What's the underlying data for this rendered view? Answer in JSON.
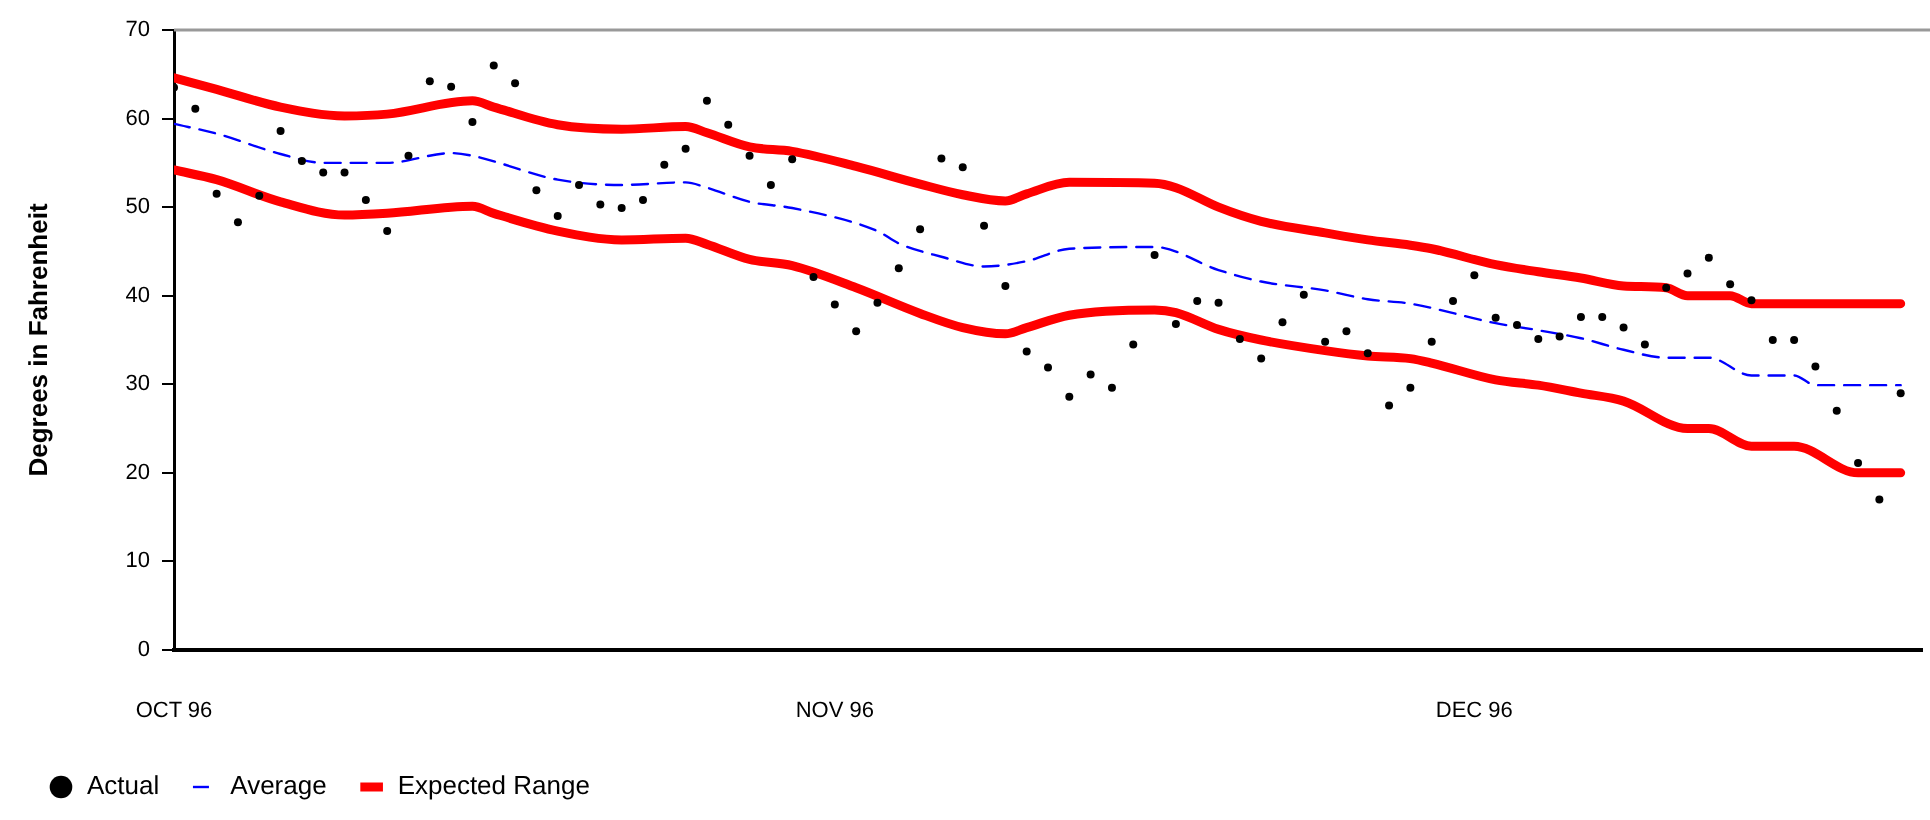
{
  "chart_data": {
    "type": "line",
    "ylabel": "Degrees in Fahrenheit",
    "xlim": [
      "1996-10-01",
      "1996-12-22"
    ],
    "xticks": [
      {
        "value": "1996-10-01",
        "label": "OCT 96"
      },
      {
        "value": "1996-11-01",
        "label": "NOV 96"
      },
      {
        "value": "1996-12-01",
        "label": "DEC 96"
      }
    ],
    "ylim": [
      0,
      70
    ],
    "yticks": [
      0,
      10,
      20,
      30,
      40,
      50,
      60,
      70
    ],
    "grid": false,
    "legend": "bottom",
    "series": [
      {
        "name": "Actual",
        "type": "scatter",
        "marker": "circle",
        "color": "#000000",
        "x": [
          "1996-10-01",
          "1996-10-02",
          "1996-10-03",
          "1996-10-04",
          "1996-10-05",
          "1996-10-06",
          "1996-10-07",
          "1996-10-08",
          "1996-10-09",
          "1996-10-10",
          "1996-10-11",
          "1996-10-12",
          "1996-10-13",
          "1996-10-14",
          "1996-10-15",
          "1996-10-16",
          "1996-10-17",
          "1996-10-18",
          "1996-10-19",
          "1996-10-20",
          "1996-10-21",
          "1996-10-22",
          "1996-10-23",
          "1996-10-24",
          "1996-10-25",
          "1996-10-26",
          "1996-10-27",
          "1996-10-28",
          "1996-10-29",
          "1996-10-30",
          "1996-10-31",
          "1996-11-01",
          "1996-11-02",
          "1996-11-03",
          "1996-11-04",
          "1996-11-05",
          "1996-11-06",
          "1996-11-07",
          "1996-11-08",
          "1996-11-09",
          "1996-11-10",
          "1996-11-11",
          "1996-11-12",
          "1996-11-13",
          "1996-11-14",
          "1996-11-15",
          "1996-11-16",
          "1996-11-17",
          "1996-11-18",
          "1996-11-19",
          "1996-11-20",
          "1996-11-21",
          "1996-11-22",
          "1996-11-23",
          "1996-11-24",
          "1996-11-25",
          "1996-11-26",
          "1996-11-27",
          "1996-11-28",
          "1996-11-29",
          "1996-11-30",
          "1996-12-01",
          "1996-12-02",
          "1996-12-03",
          "1996-12-04",
          "1996-12-05",
          "1996-12-06",
          "1996-12-07",
          "1996-12-08",
          "1996-12-09",
          "1996-12-10",
          "1996-12-11",
          "1996-12-12",
          "1996-12-13",
          "1996-12-14",
          "1996-12-15",
          "1996-12-16",
          "1996-12-17",
          "1996-12-18",
          "1996-12-19",
          "1996-12-20",
          "1996-12-21"
        ],
        "values": [
          63.5,
          61.1,
          51.5,
          48.3,
          51.3,
          58.6,
          55.2,
          53.9,
          53.9,
          50.8,
          47.3,
          55.8,
          64.2,
          63.6,
          59.6,
          66.0,
          64.0,
          51.9,
          49.0,
          52.5,
          50.3,
          49.9,
          50.8,
          54.8,
          56.6,
          62.0,
          59.3,
          55.8,
          52.5,
          55.4,
          42.1,
          39.0,
          36.0,
          39.2,
          43.1,
          47.5,
          55.5,
          54.5,
          47.9,
          41.1,
          33.7,
          31.9,
          28.6,
          31.1,
          29.6,
          34.5,
          44.6,
          36.8,
          39.4,
          39.2,
          35.1,
          32.9,
          37.0,
          40.1,
          34.8,
          36.0,
          33.5,
          27.6,
          29.6,
          34.8,
          39.4,
          42.3,
          37.5,
          36.7,
          35.1,
          35.4,
          37.6,
          37.6,
          36.4,
          34.5,
          40.9,
          42.5,
          44.3,
          41.3,
          39.5,
          35.0,
          35.0,
          32.0,
          27.0,
          21.1,
          17.0,
          29.0
        ]
      },
      {
        "name": "Average",
        "type": "line",
        "line_style": "dashed",
        "marker": "none",
        "color": "#0000ff",
        "x": [
          "1996-10-01",
          "1996-10-03",
          "1996-10-06",
          "1996-10-08",
          "1996-10-11",
          "1996-10-14",
          "1996-10-15",
          "1996-10-19",
          "1996-10-22",
          "1996-10-25",
          "1996-10-26",
          "1996-10-28",
          "1996-10-30",
          "1996-11-03",
          "1996-11-04",
          "1996-11-06",
          "1996-11-08",
          "1996-11-10",
          "1996-11-12",
          "1996-11-16",
          "1996-11-19",
          "1996-11-21",
          "1996-11-24",
          "1996-11-26",
          "1996-11-28",
          "1996-12-02",
          "1996-12-04",
          "1996-12-06",
          "1996-12-08",
          "1996-12-10",
          "1996-12-12",
          "1996-12-14",
          "1996-12-16",
          "1996-12-17",
          "1996-12-21"
        ],
        "values": [
          59.4,
          58.3,
          56.0,
          55.0,
          55.0,
          56.1,
          55.8,
          53.1,
          52.5,
          52.8,
          52.2,
          50.6,
          49.9,
          47.3,
          45.9,
          44.4,
          43.3,
          43.9,
          45.3,
          45.5,
          42.9,
          41.6,
          40.6,
          39.6,
          39.1,
          36.9,
          36.1,
          35.2,
          33.9,
          33.0,
          33.0,
          31.0,
          31.0,
          29.9,
          29.9
        ]
      },
      {
        "name": "Expected Range",
        "type": "line",
        "line_style": "solid",
        "marker": "none",
        "color": "#ff0000",
        "x": [
          "1996-10-01",
          "1996-10-03",
          "1996-10-06",
          "1996-10-09",
          "1996-10-11",
          "1996-10-15",
          "1996-10-16",
          "1996-10-19",
          "1996-10-22",
          "1996-10-25",
          "1996-10-26",
          "1996-10-28",
          "1996-10-30",
          "1996-11-02",
          "1996-11-05",
          "1996-11-07",
          "1996-11-09",
          "1996-11-10",
          "1996-11-12",
          "1996-11-16",
          "1996-11-17",
          "1996-11-19",
          "1996-11-21",
          "1996-11-24",
          "1996-11-26",
          "1996-11-28",
          "1996-11-29",
          "1996-12-02",
          "1996-12-04",
          "1996-12-06",
          "1996-12-08",
          "1996-12-10",
          "1996-12-11",
          "1996-12-13",
          "1996-12-14",
          "1996-12-21"
        ],
        "values": [
          64.6,
          63.3,
          61.3,
          60.3,
          60.5,
          62.0,
          61.3,
          59.3,
          58.8,
          59.1,
          58.4,
          56.8,
          56.3,
          54.6,
          52.6,
          51.4,
          50.7,
          51.5,
          52.8,
          52.7,
          52.2,
          50.0,
          48.4,
          47.1,
          46.3,
          45.7,
          45.3,
          43.5,
          42.7,
          42.0,
          41.1,
          40.9,
          40.0,
          40.0,
          39.1,
          39.1
        ]
      },
      {
        "type": "line",
        "line_style": "solid",
        "marker": "none",
        "color": "#ff0000",
        "x": [
          "1996-10-01",
          "1996-10-03",
          "1996-10-06",
          "1996-10-09",
          "1996-10-11",
          "1996-10-15",
          "1996-10-16",
          "1996-10-19",
          "1996-10-22",
          "1996-10-25",
          "1996-10-26",
          "1996-10-28",
          "1996-10-30",
          "1996-11-02",
          "1996-11-05",
          "1996-11-07",
          "1996-11-09",
          "1996-11-10",
          "1996-11-12",
          "1996-11-16",
          "1996-11-17",
          "1996-11-19",
          "1996-11-21",
          "1996-11-24",
          "1996-11-26",
          "1996-11-28",
          "1996-11-29",
          "1996-12-02",
          "1996-12-04",
          "1996-12-06",
          "1996-12-08",
          "1996-12-11",
          "1996-12-12",
          "1996-12-14",
          "1996-12-16",
          "1996-12-19",
          "1996-12-21"
        ],
        "values": [
          54.2,
          53.1,
          50.6,
          49.1,
          49.3,
          50.1,
          49.3,
          47.3,
          46.3,
          46.5,
          45.8,
          44.1,
          43.4,
          40.9,
          38.0,
          36.4,
          35.7,
          36.4,
          37.8,
          38.4,
          38.1,
          36.2,
          35.0,
          33.8,
          33.2,
          32.9,
          32.4,
          30.5,
          29.9,
          29.0,
          28.1,
          25.0,
          25.0,
          23.0,
          23.0,
          20.0,
          20.0
        ]
      }
    ]
  }
}
